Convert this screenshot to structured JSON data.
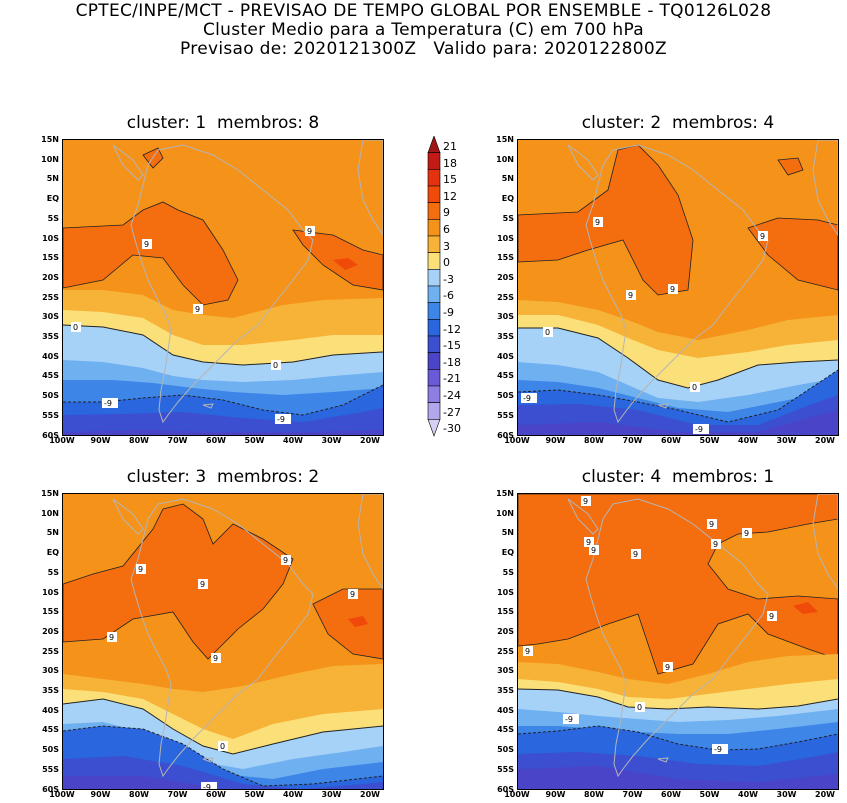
{
  "header": {
    "line1": "CPTEC/INPE/MCT - PREVISAO DE TEMPO GLOBAL POR ENSEMBLE - TQ0126L028",
    "line2": "Cluster Medio para a Temperatura (C) em 700 hPa",
    "line3": "Previsao de: 2020121300Z   Valido para: 2020122800Z"
  },
  "panels": [
    {
      "title": "cluster: 1  membros: 8"
    },
    {
      "title": "cluster: 2  membros: 4"
    },
    {
      "title": "cluster: 3  membros: 2"
    },
    {
      "title": "cluster: 4  membros: 1"
    }
  ],
  "latitudes": [
    "15N",
    "10N",
    "5N",
    "EQ",
    "5S",
    "10S",
    "15S",
    "20S",
    "25S",
    "30S",
    "35S",
    "40S",
    "45S",
    "50S",
    "55S",
    "60S"
  ],
  "longitudes": [
    "100W",
    "90W",
    "80W",
    "70W",
    "60W",
    "50W",
    "40W",
    "30W",
    "20W"
  ],
  "colorbar": {
    "levels": [
      "21",
      "18",
      "15",
      "12",
      "9",
      "6",
      "3",
      "0",
      "-3",
      "-6",
      "-9",
      "-12",
      "-15",
      "-18",
      "-21",
      "-24",
      "-27",
      "-30"
    ],
    "colors": [
      "#a01818",
      "#c21a14",
      "#e4320e",
      "#f04a0a",
      "#f46d0e",
      "#f5921a",
      "#f7b238",
      "#fbe07a",
      "#a6d2f7",
      "#6fb0f0",
      "#3e85e8",
      "#2a66de",
      "#3b4fd0",
      "#4a45c8",
      "#6a5ad8",
      "#8c7ee2",
      "#b3a6ec",
      "#d8d0f4"
    ]
  },
  "contour_labels": [
    "9",
    "0",
    "-9"
  ]
}
